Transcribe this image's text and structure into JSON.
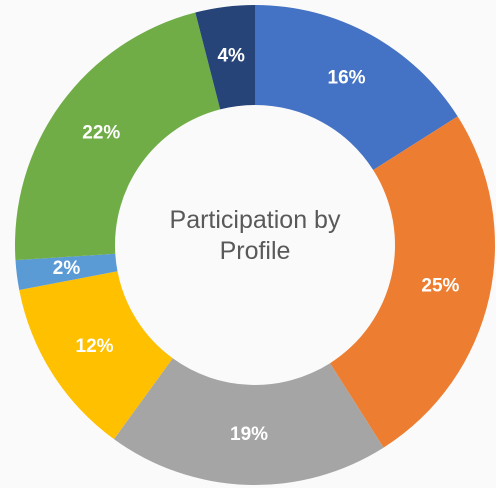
{
  "chart_data": {
    "type": "donut",
    "title": "Participation by Profile",
    "values": [
      16,
      25,
      19,
      12,
      2,
      22,
      4
    ],
    "value_labels": [
      "16%",
      "25%",
      "19%",
      "12%",
      "2%",
      "22%",
      "4%"
    ],
    "colors": [
      "#4472c4",
      "#ed7d31",
      "#a5a5a5",
      "#ffc000",
      "#5b9bd5",
      "#70ad47",
      "#264478"
    ]
  }
}
